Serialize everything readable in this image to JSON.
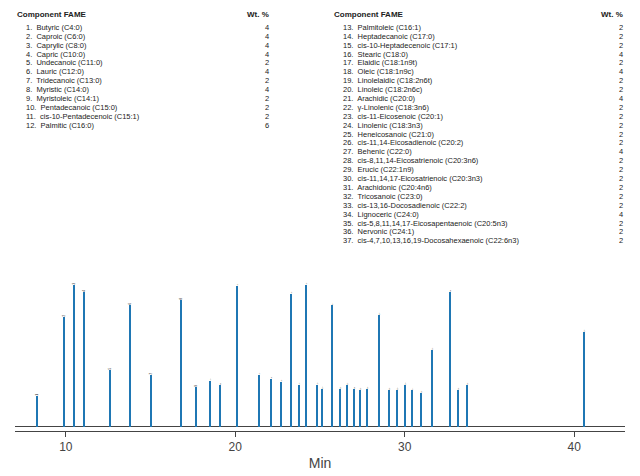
{
  "chart_data": {
    "type": "bar",
    "xlabel": "Min",
    "x": [
      8.3,
      9.9,
      10.5,
      11.1,
      12.6,
      13.8,
      15.0,
      16.8,
      17.7,
      18.5,
      19.1,
      20.1,
      21.4,
      22.1,
      22.7,
      23.3,
      23.75,
      24.2,
      24.8,
      25.1,
      25.7,
      26.2,
      26.6,
      27.0,
      27.35,
      27.75,
      28.5,
      29.1,
      29.55,
      30.0,
      30.45,
      30.95,
      31.6,
      32.7,
      33.15,
      33.65,
      40.6
    ],
    "values": [
      0.2,
      0.72,
      0.93,
      0.88,
      0.37,
      0.8,
      0.34,
      0.83,
      0.26,
      0.3,
      0.27,
      0.92,
      0.34,
      0.31,
      0.29,
      0.87,
      0.27,
      0.93,
      0.27,
      0.25,
      0.8,
      0.25,
      0.27,
      0.25,
      0.24,
      0.25,
      0.73,
      0.24,
      0.24,
      0.27,
      0.24,
      0.22,
      0.5,
      0.88,
      0.24,
      0.27,
      0.62
    ],
    "peak_numbers": [
      1,
      2,
      3,
      4,
      5,
      6,
      7,
      8,
      9,
      10,
      11,
      12,
      13,
      14,
      15,
      16,
      17,
      18,
      19,
      20,
      21,
      22,
      23,
      24,
      25,
      26,
      27,
      28,
      29,
      30,
      31,
      32,
      33,
      34,
      35,
      36,
      37
    ],
    "xlim": [
      7,
      43
    ],
    "xticks": [
      10,
      20,
      30,
      40
    ],
    "ylim": [
      -0.03,
      1.08
    ],
    "grid": false,
    "tick_labels": "x",
    "tables": [
      {
        "header": [
          "Component FAME",
          "Wt. %"
        ],
        "rows": [
          [
            "1.  Butyric (C4:0)",
            4
          ],
          [
            "2.  Caproic (C6:0)",
            4
          ],
          [
            "3.  Caprylic (C8:0)",
            4
          ],
          [
            "4.  Capric (C10:0)",
            4
          ],
          [
            "5.  Undecanoic (C11:0)",
            2
          ],
          [
            "6.  Lauric (C12:0)",
            4
          ],
          [
            "7.  Tridecanoic (C13:0)",
            2
          ],
          [
            "8.  Myristic (C14:0)",
            4
          ],
          [
            "9.  Myristoleic (C14:1)",
            2
          ],
          [
            "10.  Pentadecanoic (C15:0)",
            2
          ],
          [
            "11.  cis-10-Pentadecenoic (C15:1)",
            2
          ],
          [
            "12.  Palmitic (C16:0)",
            6
          ]
        ]
      },
      {
        "header": [
          "Component FAME",
          "Wt. %"
        ],
        "rows": [
          [
            "13.  Palmitoleic (C16:1)",
            2
          ],
          [
            "14.  Heptadecanoic (C17:0)",
            2
          ],
          [
            "15.  cis-10-Heptadecenoic (C17:1)",
            2
          ],
          [
            "16.  Stearic (C18:0)",
            4
          ],
          [
            "17.  Elaidic (C18:1n9t)",
            2
          ],
          [
            "18.  Oleic (C18:1n9c)",
            4
          ],
          [
            "19.  Linolelaidic (C18:2n6t)",
            2
          ],
          [
            "20.  Linoleic (C18:2n6c)",
            2
          ],
          [
            "21.  Arachidic (C20:0)",
            4
          ],
          [
            "22.  γ-Linolenic (C18:3n6)",
            2
          ],
          [
            "23.  cis-11-Eicosenoic (C20:1)",
            2
          ],
          [
            "24.  Linolenic (C18:3n3)",
            2
          ],
          [
            "25.  Heneicosanoic (C21:0)",
            2
          ],
          [
            "26.  cis-11,14-Eicosadienoic (C20:2)",
            2
          ],
          [
            "27.  Behenic (C22:0)",
            4
          ],
          [
            "28.  cis-8,11,14-Eicosatrienoic (C20:3n6)",
            2
          ],
          [
            "29.  Erucic (C22:1n9)",
            2
          ],
          [
            "30.  cis-11,14,17-Eicosatrienoic (C20:3n3)",
            2
          ],
          [
            "31.  Arachidonic (C20:4n6)",
            2
          ],
          [
            "32.  Tricosanoic (C23:0)",
            2
          ],
          [
            "33.  cis-13,16-Docosadienoic (C22:2)",
            2
          ],
          [
            "34.  Lignoceric (C24:0)",
            4
          ],
          [
            "35.  cis-5,8,11,14,17-Eicosapentaenoic (C20:5n3)",
            2
          ],
          [
            "36.  Nervonic (C24:1)",
            2
          ],
          [
            "37.  cis-4,7,10,13,16,19-Docosahexaenoic (C22:6n3)",
            2
          ]
        ]
      }
    ]
  }
}
